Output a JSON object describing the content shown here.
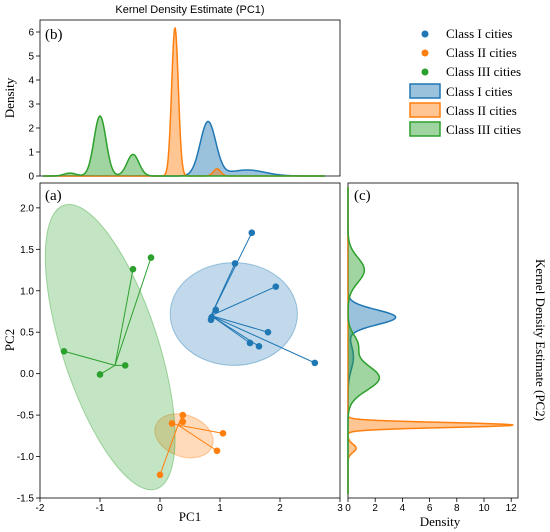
{
  "colors": {
    "class1": "#1f77b4",
    "class2": "#ff7f0e",
    "class3": "#2ca02c"
  },
  "chart_data": [
    {
      "id": "scatter",
      "type": "scatter",
      "panel_label": "(a)",
      "xlabel": "PC1",
      "ylabel": "PC2",
      "xlim": [
        -2,
        3
      ],
      "ylim": [
        -1.5,
        2.3
      ],
      "xticks": [
        -2,
        -1,
        0,
        1,
        2,
        3
      ],
      "yticks": [
        -1.5,
        -1.0,
        -0.5,
        0.0,
        0.5,
        1.0,
        1.5,
        2.0
      ],
      "series": [
        {
          "name": "Class I cities",
          "color": "#1f77b4",
          "centroid": [
            0.85,
            0.7
          ],
          "points": [
            [
              1.53,
              1.7
            ],
            [
              1.25,
              1.33
            ],
            [
              1.93,
              1.05
            ],
            [
              0.93,
              0.77
            ],
            [
              0.86,
              0.68
            ],
            [
              0.85,
              0.65
            ],
            [
              1.8,
              0.5
            ],
            [
              1.5,
              0.37
            ],
            [
              1.65,
              0.33
            ],
            [
              2.58,
              0.13
            ]
          ],
          "ellipse": {
            "cx": 1.23,
            "cy": 0.72,
            "rx": 1.06,
            "ry": 0.62,
            "angle": 0
          }
        },
        {
          "name": "Class II cities",
          "color": "#ff7f0e",
          "centroid": [
            0.3,
            -0.62
          ],
          "points": [
            [
              0.38,
              -0.5
            ],
            [
              0.38,
              -0.58
            ],
            [
              0.2,
              -0.6
            ],
            [
              1.05,
              -0.72
            ],
            [
              0.95,
              -0.93
            ],
            [
              0.0,
              -1.22
            ]
          ],
          "ellipse": {
            "cx": 0.4,
            "cy": -0.75,
            "rx": 0.5,
            "ry": 0.25,
            "angle": -20
          }
        },
        {
          "name": "Class III cities",
          "color": "#2ca02c",
          "centroid": [
            -0.75,
            0.1
          ],
          "points": [
            [
              -0.15,
              1.4
            ],
            [
              -0.45,
              1.26
            ],
            [
              -1.6,
              0.27
            ],
            [
              -0.58,
              0.1
            ],
            [
              -1.0,
              -0.01
            ]
          ],
          "ellipse": {
            "cx": -0.83,
            "cy": 0.32,
            "rx": 0.8,
            "ry": 1.8,
            "angle": 18
          }
        }
      ]
    },
    {
      "id": "kde_pc1",
      "type": "area",
      "panel_label": "(b)",
      "title": "Kernel Density Estimate (PC1)",
      "ylabel": "Density",
      "ylim": [
        0,
        6.5
      ],
      "yticks": [
        0,
        1,
        2,
        3,
        4,
        5,
        6
      ],
      "series": [
        {
          "name": "Class I cities",
          "color": "#1f77b4",
          "peaks": [
            {
              "mu": 0.8,
              "sd": 0.13,
              "h": 2.25
            },
            {
              "mu": 1.45,
              "sd": 0.3,
              "h": 0.25
            }
          ]
        },
        {
          "name": "Class II cities",
          "color": "#ff7f0e",
          "peaks": [
            {
              "mu": 0.25,
              "sd": 0.055,
              "h": 6.2
            },
            {
              "mu": 0.95,
              "sd": 0.06,
              "h": 0.3
            }
          ]
        },
        {
          "name": "Class III cities",
          "color": "#2ca02c",
          "peaks": [
            {
              "mu": -1.0,
              "sd": 0.1,
              "h": 2.5
            },
            {
              "mu": -0.45,
              "sd": 0.1,
              "h": 0.9
            },
            {
              "mu": -1.5,
              "sd": 0.1,
              "h": 0.12
            }
          ]
        }
      ]
    },
    {
      "id": "kde_pc2",
      "type": "area",
      "panel_label": "(c)",
      "xlabel": "Density",
      "side_title": "Kernel Density Estimate (PC2)",
      "xlim": [
        0,
        12.5
      ],
      "xticks": [
        0,
        2,
        4,
        6,
        8,
        10,
        12
      ],
      "series": [
        {
          "name": "Class I cities",
          "color": "#1f77b4",
          "peaks": [
            {
              "mu": 0.68,
              "sd": 0.09,
              "h": 3.5
            },
            {
              "mu": 0.2,
              "sd": 0.15,
              "h": 0.4
            }
          ]
        },
        {
          "name": "Class II cities",
          "color": "#ff7f0e",
          "peaks": [
            {
              "mu": -0.62,
              "sd": 0.03,
              "h": 12.2
            },
            {
              "mu": -0.9,
              "sd": 0.05,
              "h": 0.6
            }
          ]
        },
        {
          "name": "Class III cities",
          "color": "#2ca02c",
          "peaks": [
            {
              "mu": 1.25,
              "sd": 0.15,
              "h": 1.2
            },
            {
              "mu": -0.05,
              "sd": 0.15,
              "h": 2.3
            },
            {
              "mu": 0.35,
              "sd": 0.12,
              "h": 0.7
            }
          ]
        }
      ]
    }
  ],
  "legend": {
    "placement": "top-right",
    "points": [
      "Class I cities",
      "Class II cities",
      "Class III cities"
    ],
    "areas": [
      "Class I cities",
      "Class II cities",
      "Class III cities"
    ]
  }
}
